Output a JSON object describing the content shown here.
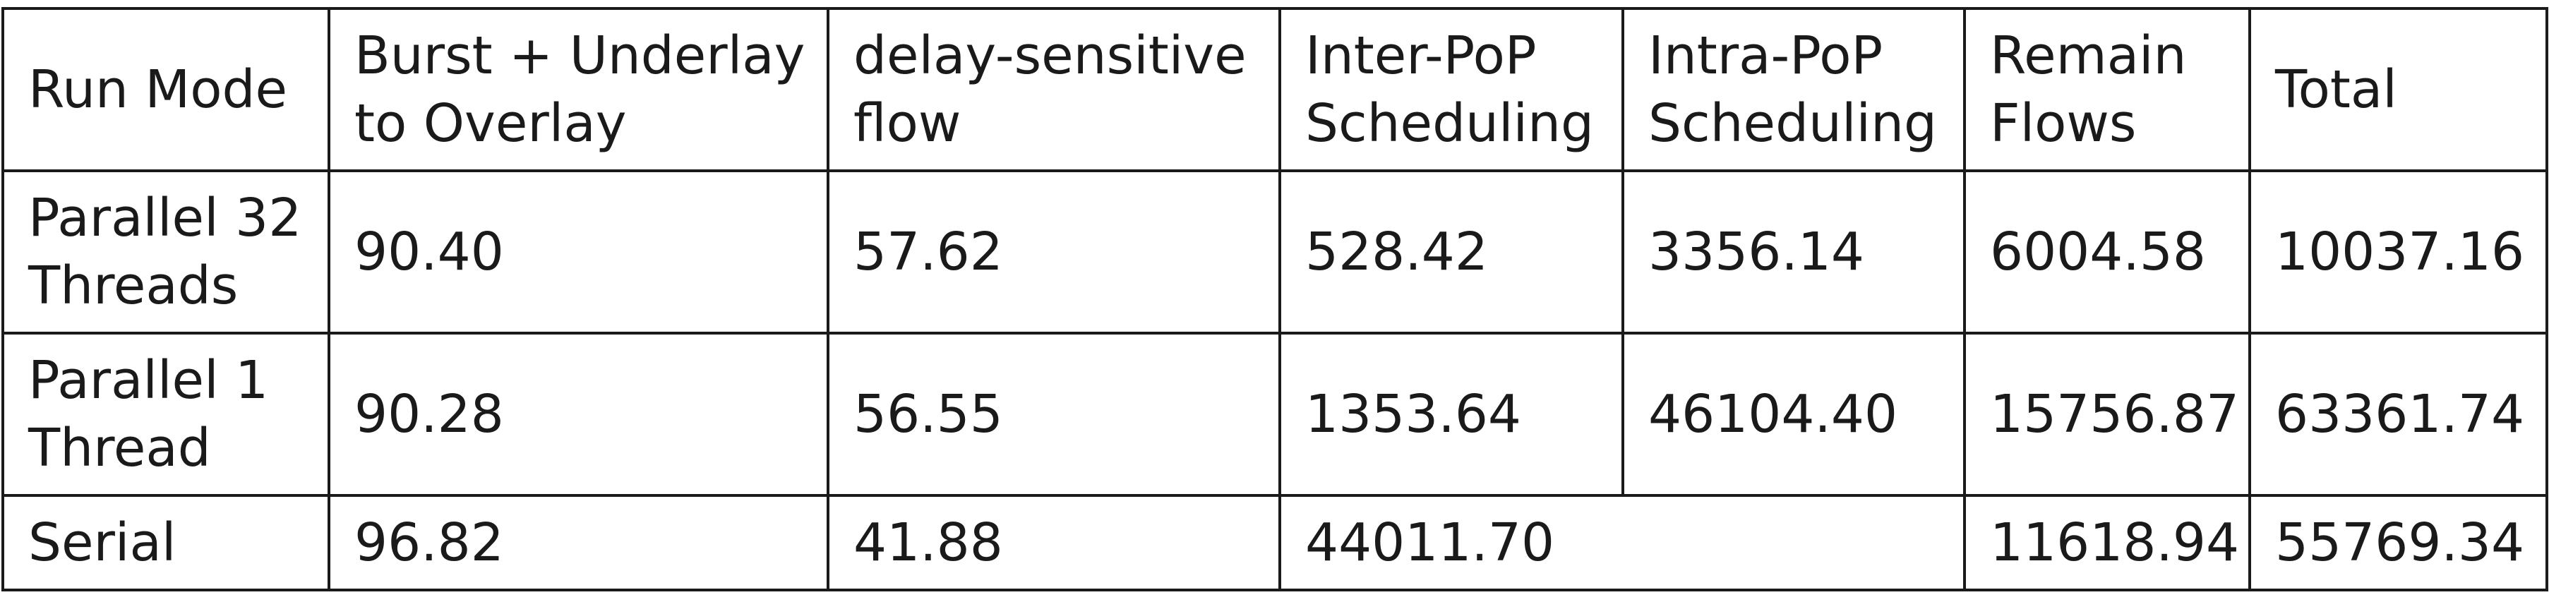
{
  "table": {
    "header": {
      "run_mode": [
        "Run Mode"
      ],
      "burst": [
        "Burst + Underlay",
        "to Overlay"
      ],
      "delay": [
        "delay-sensitive",
        "flow"
      ],
      "inter": [
        "Inter-PoP",
        "Scheduling"
      ],
      "intra": [
        "Intra-PoP",
        "Scheduling"
      ],
      "remain": [
        "Remain",
        "Flows"
      ],
      "total": [
        "Total"
      ]
    },
    "rows": [
      {
        "mode": [
          "Parallel 32",
          "Threads"
        ],
        "burst": "90.40",
        "delay": "57.62",
        "inter": "528.42",
        "intra": "3356.14",
        "remain": "6004.58",
        "total": "10037.16"
      },
      {
        "mode": [
          "Parallel 1",
          "Thread"
        ],
        "burst": "90.28",
        "delay": "56.55",
        "inter": "1353.64",
        "intra": "46104.40",
        "remain": "15756.87",
        "total": "63361.74"
      },
      {
        "mode": [
          "Serial"
        ],
        "burst": "96.82",
        "delay": "41.88",
        "inter_intra_merged": "44011.70",
        "remain": "11618.94",
        "total": "55769.34"
      }
    ]
  }
}
